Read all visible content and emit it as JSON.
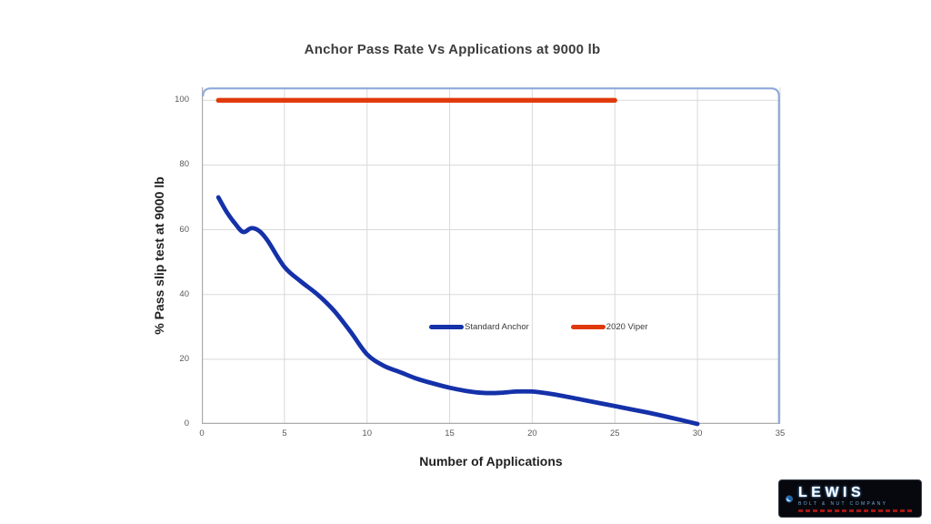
{
  "slide": {
    "background": "#ffffff"
  },
  "chart_data": {
    "type": "line",
    "title": "Anchor Pass Rate Vs Applications at 9000 lb",
    "xlabel": "Number of Applications",
    "ylabel": "% Pass slip test at 9000 lb",
    "xlim": [
      0,
      35
    ],
    "ylim": [
      0,
      104
    ],
    "x_ticks": [
      0,
      5,
      10,
      15,
      20,
      25,
      30,
      35
    ],
    "y_ticks": [
      0,
      20,
      40,
      60,
      80,
      100
    ],
    "grid": true,
    "legend_position": "inside plot, center",
    "colors": {
      "frame": "#8EA9DB",
      "gridline": "#D9D9D9",
      "axis": "#ABABAB",
      "title_text": "#3d3d3d",
      "tick_text": "#595959"
    },
    "series": [
      {
        "name": "Standard Anchor",
        "color": "#1531A9",
        "x": [
          1,
          1.5,
          2,
          2.5,
          3,
          3.5,
          4,
          5,
          6,
          7,
          8,
          9,
          10,
          11,
          12,
          13,
          14,
          15,
          16,
          17,
          18,
          19,
          20,
          21,
          22,
          23,
          24,
          25,
          26,
          27,
          28,
          29,
          30
        ],
        "y": [
          70,
          65.5,
          62,
          59.3,
          60.5,
          59.5,
          56.5,
          48.5,
          44,
          40,
          35,
          28.5,
          21.5,
          18,
          16,
          14,
          12.5,
          11.2,
          10.2,
          9.6,
          9.6,
          10,
          10,
          9.4,
          8.5,
          7.5,
          6.5,
          5.5,
          4.5,
          3.5,
          2.4,
          1.2,
          0
        ]
      },
      {
        "name": "2020 Viper",
        "color": "#E03808",
        "x": [
          1,
          25
        ],
        "y": [
          100,
          100
        ]
      }
    ]
  },
  "logo": {
    "text": "LEWIS",
    "subtext": "BOLT & NUT COMPANY",
    "background": "#07080d",
    "letter_color": "#ffffff",
    "glow_color": "#4a8fd4",
    "subtext_color": "#74a9da",
    "tagline_color": "#a81414",
    "globe_color": "#1565b0"
  }
}
